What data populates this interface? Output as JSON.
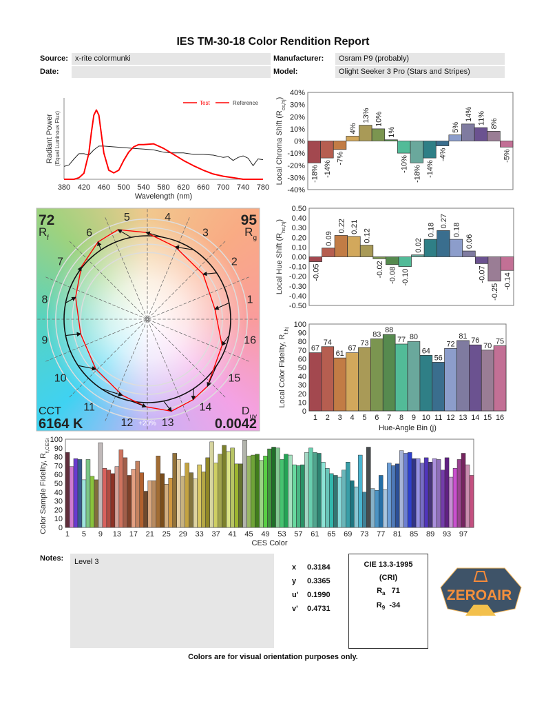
{
  "title": "IES TM-30-18 Color Rendition Report",
  "info": {
    "source_label": "Source:",
    "source_value": "x-rite colormunki",
    "date_label": "Date:",
    "date_value": "",
    "manufacturer_label": "Manufacturer:",
    "manufacturer_value": "Osram P9 (probably)",
    "model_label": "Model:",
    "model_value": "Olight Seeker 3 Pro (Stars and Stripes)"
  },
  "colors": {
    "test": "#ff0000",
    "reference": "#222222",
    "bins": [
      "#a3484f",
      "#b65e50",
      "#c27c45",
      "#d2a85c",
      "#a99a57",
      "#7b9550",
      "#568a4f",
      "#52bb98",
      "#6aa89c",
      "#2f7f86",
      "#3a6e8e",
      "#8c9dcb",
      "#7f7ba0",
      "#6b5290",
      "#9a7d95",
      "#c27095"
    ]
  },
  "spectrum": {
    "ylabel": "Radiant Power",
    "ylabel2": "(Equal Luminous Flux)",
    "xlabel": "Wavelength (nm)",
    "legend": [
      "Test",
      "Reference"
    ],
    "chart_data": {
      "type": "line",
      "xlim": [
        380,
        780
      ],
      "xticks": [
        380,
        420,
        460,
        500,
        540,
        580,
        620,
        660,
        700,
        740,
        780
      ],
      "series": [
        {
          "name": "Test",
          "x": [
            380,
            400,
            410,
            420,
            430,
            435,
            440,
            445,
            450,
            455,
            460,
            470,
            480,
            490,
            500,
            510,
            520,
            530,
            540,
            560,
            580,
            600,
            620,
            640,
            660,
            680,
            700,
            720,
            730,
            740,
            780
          ],
          "y": [
            0,
            0,
            0.02,
            0.08,
            0.35,
            0.62,
            0.85,
            0.92,
            0.85,
            0.6,
            0.35,
            0.12,
            0.085,
            0.12,
            0.25,
            0.36,
            0.43,
            0.46,
            0.46,
            0.47,
            0.41,
            0.33,
            0.25,
            0.18,
            0.12,
            0.07,
            0.04,
            0.02,
            0.01,
            0,
            0
          ]
        },
        {
          "name": "Reference",
          "x": [
            380,
            390,
            400,
            410,
            420,
            430,
            440,
            450,
            460,
            480,
            500,
            520,
            540,
            560,
            580,
            600,
            620,
            640,
            660,
            680,
            700,
            710,
            720,
            730,
            740,
            750,
            760,
            770,
            780
          ],
          "y": [
            0.17,
            0.19,
            0.27,
            0.34,
            0.34,
            0.32,
            0.39,
            0.44,
            0.44,
            0.43,
            0.42,
            0.41,
            0.4,
            0.39,
            0.36,
            0.35,
            0.35,
            0.33,
            0.33,
            0.32,
            0.29,
            0.3,
            0.25,
            0.29,
            0.31,
            0.28,
            0.18,
            0.27,
            0.26
          ]
        }
      ]
    }
  },
  "chroma": {
    "ylabel": "Local Chroma Shift (R",
    "ylabel_sub": "cs,hj",
    "ylabel_end": ")",
    "chart_data": {
      "type": "bar",
      "ylim": [
        -40,
        40
      ],
      "yticks": [
        "40%",
        "30%",
        "20%",
        "10%",
        "0%",
        "-10%",
        "-20%",
        "-30%",
        "-40%"
      ],
      "values": [
        -18,
        -14,
        -7,
        4,
        13,
        10,
        1,
        -10,
        -18,
        -14,
        -4,
        5,
        14,
        11,
        8,
        -5
      ],
      "labels": [
        "-18%",
        "-14%",
        "-7%",
        "4%",
        "13%",
        "10%",
        "1%",
        "-10%",
        "-18%",
        "-14%",
        "-4%",
        "5%",
        "14%",
        "11%",
        "8%",
        "-5%"
      ]
    }
  },
  "hue": {
    "ylabel": "Local Hue Shift (R",
    "ylabel_sub": "hs,hj",
    "ylabel_end": ")",
    "chart_data": {
      "type": "bar",
      "ylim": [
        -0.5,
        0.5
      ],
      "yticks": [
        "0.50",
        "0.40",
        "0.30",
        "0.20",
        "0.10",
        "0.00",
        "-0.10",
        "-0.20",
        "-0.30",
        "-0.40",
        "-0.50"
      ],
      "values": [
        -0.05,
        0.09,
        0.22,
        0.21,
        0.12,
        -0.02,
        -0.08,
        -0.1,
        0.02,
        0.18,
        0.27,
        0.18,
        0.06,
        -0.07,
        -0.25,
        -0.14
      ],
      "labels": [
        "-0.05",
        "0.09",
        "0.22",
        "0.21",
        "0.12",
        "-0.02",
        "-0.08",
        "-0.10",
        "0.02",
        "0.18",
        "0.27",
        "0.18",
        "0.06",
        "-0.07",
        "-0.25",
        "-0.14"
      ]
    }
  },
  "fidelity": {
    "ylabel": "Local Color Fidelity, R",
    "ylabel_sub": "f,hj",
    "xlabel": "Hue-Angle Bin (j)",
    "chart_data": {
      "type": "bar",
      "ylim": [
        0,
        100
      ],
      "yticks": [
        "100",
        "90",
        "80",
        "70",
        "60",
        "50",
        "40",
        "30",
        "20",
        "10",
        "0"
      ],
      "categories": [
        "1",
        "2",
        "3",
        "4",
        "5",
        "6",
        "7",
        "8",
        "9",
        "10",
        "11",
        "12",
        "13",
        "14",
        "15",
        "16"
      ],
      "values": [
        67,
        74,
        61,
        67,
        73,
        83,
        88,
        77,
        80,
        64,
        56,
        72,
        81,
        76,
        70,
        75
      ]
    }
  },
  "vector": {
    "rf": "72",
    "rf_label": "R",
    "rf_sub": "f",
    "rg": "95",
    "rg_label": "R",
    "rg_sub": "g",
    "cct_label": "CCT",
    "cct": "6164 K",
    "duv_label": "D",
    "duv_sub": "uv",
    "duv": "0.0042",
    "ring_label": "+20%",
    "bin_labels": [
      "1",
      "2",
      "3",
      "4",
      "5",
      "6",
      "7",
      "8",
      "9",
      "10",
      "11",
      "12",
      "13",
      "14",
      "15",
      "16"
    ]
  },
  "ces": {
    "ylabel": "Color Sample Fidelity, R",
    "ylabel_sub": "f,CESi",
    "xlabel": "CES Color",
    "chart_data": {
      "type": "bar",
      "ylim": [
        0,
        100
      ],
      "yticks": [
        "100",
        "90",
        "80",
        "70",
        "60",
        "50",
        "40",
        "30",
        "20",
        "10",
        "0"
      ],
      "xticks": [
        "1",
        "5",
        "9",
        "13",
        "17",
        "21",
        "25",
        "29",
        "33",
        "37",
        "41",
        "45",
        "49",
        "53",
        "57",
        "61",
        "65",
        "69",
        "73",
        "77",
        "81",
        "85",
        "89",
        "93",
        "97"
      ],
      "values": [
        85,
        69,
        78,
        77,
        54,
        77,
        58,
        54,
        96,
        67,
        65,
        61,
        69,
        88,
        79,
        59,
        66,
        75,
        62,
        41,
        53,
        53,
        81,
        61,
        49,
        56,
        84,
        77,
        58,
        73,
        62,
        55,
        71,
        63,
        79,
        97,
        73,
        83,
        93,
        86,
        90,
        72,
        72,
        99,
        81,
        82,
        83,
        76,
        81,
        89,
        91,
        90,
        77,
        83,
        82,
        71,
        70,
        71,
        85,
        90,
        85,
        84,
        74,
        67,
        61,
        59,
        57,
        65,
        74,
        53,
        46,
        82,
        40,
        91,
        44,
        42,
        59,
        43,
        73,
        70,
        72,
        87,
        84,
        85,
        78,
        78,
        73,
        79,
        74,
        78,
        77,
        65,
        79,
        57,
        67,
        77,
        84,
        71,
        59
      ]
    }
  },
  "notes": {
    "label": "Notes:",
    "value": "Level 3"
  },
  "chromaticity": [
    {
      "k": "x",
      "v": "0.3184"
    },
    {
      "k": "y",
      "v": "0.3365"
    },
    {
      "k": "u'",
      "v": "0.1990"
    },
    {
      "k": "v'",
      "v": "0.4731"
    }
  ],
  "cri": {
    "title": "CIE 13.3-1995",
    "subtitle": "(CRI)",
    "ra_label": "R",
    "ra_sub": "a",
    "ra": "71",
    "r9_label": "R",
    "r9_sub": "9",
    "r9": "-34"
  },
  "footer": "Colors are for visual orientation purposes only.",
  "watermark": {
    "logo_text": "ZEROAIR",
    "logo_sub": ".org"
  }
}
